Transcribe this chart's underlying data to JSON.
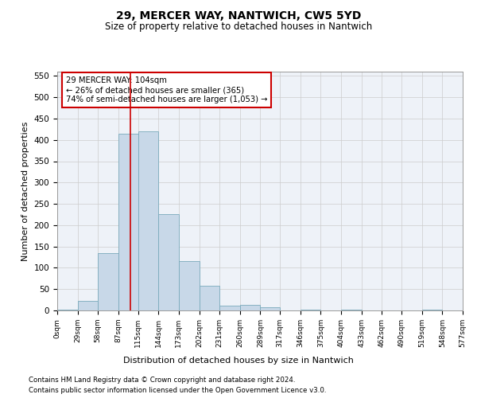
{
  "title": "29, MERCER WAY, NANTWICH, CW5 5YD",
  "subtitle": "Size of property relative to detached houses in Nantwich",
  "xlabel": "Distribution of detached houses by size in Nantwich",
  "ylabel": "Number of detached properties",
  "bar_color": "#c8d8e8",
  "bar_edge_color": "#7aaabb",
  "grid_color": "#cccccc",
  "property_line_color": "#cc0000",
  "property_value": 104,
  "property_label": "29 MERCER WAY: 104sqm",
  "annotation_line1": "← 26% of detached houses are smaller (365)",
  "annotation_line2": "74% of semi-detached houses are larger (1,053) →",
  "annotation_box_color": "#ffffff",
  "annotation_box_edge": "#cc0000",
  "bin_edges": [
    0,
    29,
    58,
    87,
    115,
    144,
    173,
    202,
    231,
    260,
    289,
    317,
    346,
    375,
    404,
    433,
    462,
    490,
    519,
    548,
    577
  ],
  "bar_heights": [
    2,
    22,
    135,
    415,
    420,
    225,
    115,
    58,
    11,
    14,
    7,
    0,
    1,
    0,
    2,
    0,
    0,
    0,
    1,
    0
  ],
  "xlim": [
    0,
    577
  ],
  "ylim": [
    0,
    560
  ],
  "yticks": [
    0,
    50,
    100,
    150,
    200,
    250,
    300,
    350,
    400,
    450,
    500,
    550
  ],
  "footer_line1": "Contains HM Land Registry data © Crown copyright and database right 2024.",
  "footer_line2": "Contains public sector information licensed under the Open Government Licence v3.0.",
  "background_color": "#eef2f8"
}
